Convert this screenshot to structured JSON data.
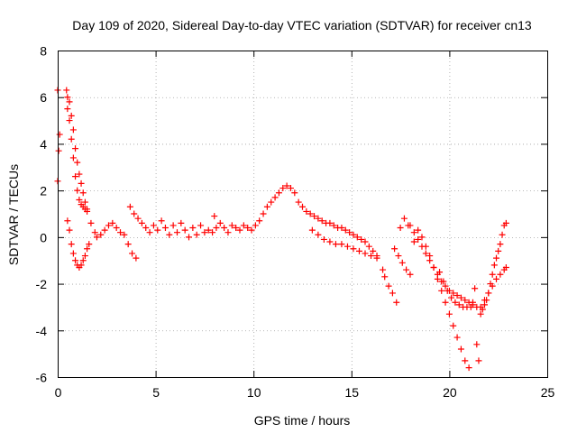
{
  "chart_data": {
    "type": "scatter",
    "title": "Day 109 of 2020, Sidereal Day-to-day VTEC variation (SDTVAR) for receiver cn13",
    "xlabel": "GPS time / hours",
    "ylabel": "SDTVAR / TECUs",
    "xlim": [
      0,
      25
    ],
    "ylim": [
      -6,
      8
    ],
    "xticks": [
      "0",
      "5",
      "10",
      "15",
      "20",
      "25"
    ],
    "yticks": [
      "-6",
      "-4",
      "-2",
      "0",
      "2",
      "4",
      "6",
      "8"
    ],
    "grid": true,
    "marker": "+",
    "colors": {
      "series": "#ff0000",
      "grid": "#a0a0a0",
      "axis": "#000000"
    },
    "series": [
      {
        "name": "SDTVAR",
        "x": [
          0.0,
          0.0,
          0.05,
          0.1,
          0.45,
          0.5,
          0.6,
          0.7,
          0.8,
          0.9,
          1.0,
          1.1,
          1.2,
          1.3,
          1.4,
          1.5,
          0.5,
          0.6,
          0.7,
          0.8,
          0.9,
          1.0,
          1.1,
          1.2,
          1.3,
          1.4,
          1.5,
          1.6,
          0.5,
          0.6,
          0.7,
          0.8,
          0.9,
          1.0,
          1.1,
          1.2,
          1.3,
          1.4,
          1.5,
          1.7,
          1.9,
          2.0,
          2.2,
          2.4,
          2.6,
          2.8,
          3.0,
          3.2,
          3.4,
          3.6,
          3.8,
          4.0,
          3.7,
          3.9,
          4.1,
          4.3,
          4.5,
          4.7,
          4.9,
          5.1,
          5.3,
          5.5,
          5.7,
          5.9,
          6.1,
          6.3,
          6.5,
          6.7,
          6.9,
          7.1,
          7.3,
          7.5,
          7.7,
          7.9,
          8.0,
          8.1,
          8.3,
          8.5,
          8.7,
          8.9,
          9.1,
          9.3,
          9.5,
          9.7,
          9.9,
          10.1,
          10.3,
          10.5,
          10.7,
          10.9,
          11.1,
          11.3,
          11.5,
          11.7,
          11.9,
          12.1,
          12.3,
          12.5,
          12.7,
          12.9,
          13.1,
          13.3,
          13.5,
          13.7,
          13.9,
          14.1,
          14.3,
          14.5,
          14.7,
          14.9,
          15.1,
          15.3,
          15.5,
          15.7,
          15.9,
          16.1,
          16.3,
          13.0,
          13.3,
          13.6,
          13.9,
          14.2,
          14.5,
          14.8,
          15.1,
          15.4,
          15.7,
          16.0,
          16.3,
          16.6,
          16.7,
          16.9,
          17.1,
          17.3,
          17.5,
          17.7,
          17.9,
          17.2,
          17.4,
          17.6,
          17.8,
          18.0,
          18.2,
          18.4,
          18.6,
          18.8,
          19.0,
          19.2,
          19.4,
          19.6,
          19.8,
          20.0,
          20.2,
          20.4,
          20.6,
          20.8,
          21.0,
          19.5,
          19.7,
          19.9,
          20.1,
          20.3,
          20.5,
          20.7,
          20.9,
          21.1,
          21.2,
          21.3,
          21.4,
          21.5,
          21.6,
          21.7,
          21.8,
          21.9,
          22.0,
          22.1,
          22.2,
          22.3,
          22.4,
          22.5,
          22.6,
          22.7,
          22.8,
          22.9,
          21.6,
          21.8,
          22.0,
          22.2,
          22.4,
          22.6,
          22.8,
          22.9,
          18.0,
          18.2,
          18.4,
          18.6,
          18.8,
          19.0,
          19.2,
          19.4,
          19.6,
          19.8,
          20.0,
          20.2,
          20.4,
          20.6,
          20.8,
          21.0,
          21.2,
          21.4
        ],
        "y": [
          6.3,
          2.4,
          3.7,
          4.4,
          6.3,
          6.0,
          5.8,
          5.2,
          4.6,
          3.8,
          3.2,
          2.7,
          2.3,
          1.9,
          1.5,
          1.2,
          0.7,
          0.3,
          -0.3,
          -0.7,
          -1.0,
          -1.2,
          -1.3,
          -1.2,
          -1.0,
          -0.8,
          -0.5,
          -0.3,
          5.5,
          5.0,
          4.2,
          3.4,
          2.6,
          2.0,
          1.6,
          1.4,
          1.3,
          1.2,
          1.1,
          0.6,
          0.2,
          0.0,
          0.1,
          0.3,
          0.5,
          0.6,
          0.4,
          0.2,
          0.1,
          -0.3,
          -0.7,
          -0.9,
          1.3,
          1.0,
          0.8,
          0.6,
          0.4,
          0.2,
          0.5,
          0.3,
          0.7,
          0.4,
          0.1,
          0.5,
          0.2,
          0.6,
          0.3,
          0.0,
          0.4,
          0.1,
          0.5,
          0.2,
          0.3,
          0.2,
          0.9,
          0.4,
          0.6,
          0.4,
          0.2,
          0.5,
          0.4,
          0.3,
          0.5,
          0.4,
          0.3,
          0.5,
          0.7,
          1.0,
          1.3,
          1.5,
          1.7,
          1.9,
          2.1,
          2.2,
          2.1,
          1.9,
          1.5,
          1.3,
          1.1,
          1.0,
          0.9,
          0.8,
          0.7,
          0.6,
          0.6,
          0.5,
          0.4,
          0.4,
          0.3,
          0.2,
          0.1,
          0.0,
          -0.1,
          -0.2,
          -0.4,
          -0.6,
          -0.8,
          0.3,
          0.1,
          -0.1,
          -0.2,
          -0.3,
          -0.3,
          -0.4,
          -0.5,
          -0.6,
          -0.7,
          -0.8,
          -0.9,
          -1.4,
          -1.7,
          -2.1,
          -2.4,
          -2.8,
          0.4,
          0.8,
          0.5,
          -0.5,
          -0.8,
          -1.1,
          -1.4,
          -1.6,
          -0.2,
          0.3,
          0.0,
          -0.4,
          -0.8,
          -1.3,
          -1.8,
          -2.3,
          -2.8,
          -3.3,
          -3.8,
          -4.3,
          -4.8,
          -5.3,
          -5.6,
          -1.5,
          -1.9,
          -2.3,
          -2.6,
          -2.8,
          -2.9,
          -3.0,
          -3.0,
          -3.0,
          -2.8,
          -2.2,
          -4.6,
          -5.3,
          -3.3,
          -3.1,
          -2.9,
          -2.7,
          -2.4,
          -2.0,
          -1.6,
          -1.2,
          -0.9,
          -0.6,
          -0.3,
          0.1,
          0.5,
          0.6,
          -3.0,
          -2.7,
          -2.4,
          -2.1,
          -1.8,
          -1.6,
          -1.4,
          -1.3,
          0.5,
          0.2,
          -0.1,
          -0.4,
          -0.7,
          -1.0,
          -1.3,
          -1.6,
          -1.9,
          -2.1,
          -2.3,
          -2.4,
          -2.5,
          -2.6,
          -2.7,
          -2.8,
          -2.9,
          -3.0
        ]
      }
    ]
  }
}
